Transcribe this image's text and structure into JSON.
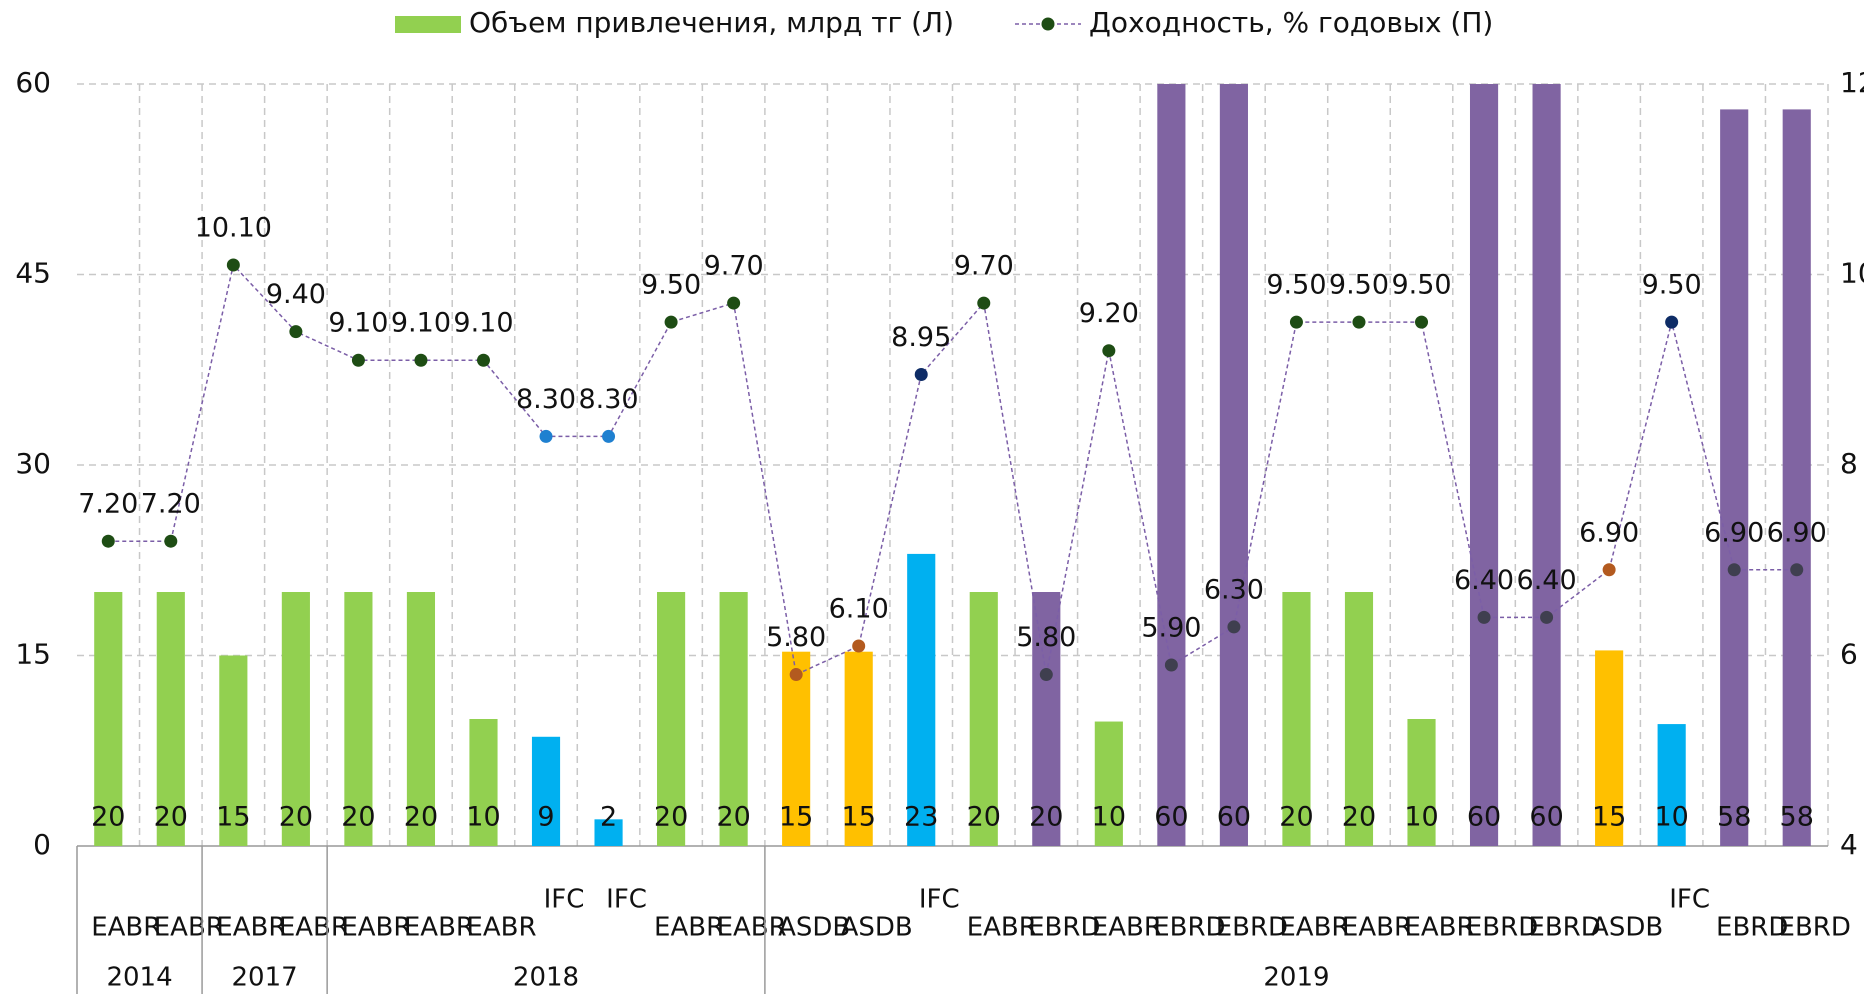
{
  "chart_data": {
    "type": "combo",
    "groups": [
      {
        "label": "2014",
        "span": 2
      },
      {
        "label": "2017",
        "span": 2
      },
      {
        "label": "2018",
        "span": 7
      },
      {
        "label": "2019",
        "span": 17
      }
    ],
    "categories": [
      "EABR",
      "EABR",
      "EABR",
      "EABR",
      "EABR",
      "EABR",
      "EABR",
      "IFC",
      "IFC",
      "EABR",
      "EABR",
      "ASDB",
      "ASDB",
      "IFC",
      "EABR",
      "EBRD",
      "EABR",
      "EBRD",
      "EBRD",
      "EABR",
      "EABR",
      "EABR",
      "EBRD",
      "EBRD",
      "ASDB",
      "IFC",
      "EBRD",
      "EBRD"
    ],
    "ylim": [
      0,
      60
    ],
    "yticks": [
      0,
      15,
      30,
      45,
      60
    ],
    "y2lim": [
      4,
      12
    ],
    "y2ticks": [
      4,
      6,
      8,
      10,
      12
    ],
    "grid": true,
    "series": [
      {
        "name": "Объем привлечения, млрд тг (Л)",
        "type": "bar",
        "color": "#92d050",
        "colors": [
          "#92d050",
          "#92d050",
          "#92d050",
          "#92d050",
          "#92d050",
          "#92d050",
          "#92d050",
          "#00b0f0",
          "#00b0f0",
          "#92d050",
          "#92d050",
          "#ffc000",
          "#ffc000",
          "#00b0f0",
          "#92d050",
          "#8064a2",
          "#92d050",
          "#8064a2",
          "#8064a2",
          "#92d050",
          "#92d050",
          "#92d050",
          "#8064a2",
          "#8064a2",
          "#ffc000",
          "#00b0f0",
          "#8064a2",
          "#8064a2"
        ],
        "values": [
          20,
          20,
          15,
          20,
          20,
          20,
          10,
          8.6,
          2.1,
          20,
          20,
          15.3,
          15.3,
          23,
          20,
          20,
          9.8,
          60,
          60,
          20,
          20,
          10,
          60,
          60,
          15.4,
          9.6,
          58,
          58
        ],
        "value_labels": [
          "20",
          "20",
          "15",
          "20",
          "20",
          "20",
          "10",
          "9",
          "2",
          "20",
          "20",
          "15",
          "15",
          "23",
          "20",
          "20",
          "10",
          "60",
          "60",
          "20",
          "20",
          "10",
          "60",
          "60",
          "15",
          "10",
          "58",
          "58"
        ]
      },
      {
        "name": "Доходность, % годовых (П)",
        "type": "line",
        "axis": "y2",
        "color": "#7b5ea7",
        "legend_marker": "#1e4d14",
        "point_colors": [
          "#1e4d14",
          "#1e4d14",
          "#1e4d14",
          "#1e4d14",
          "#1e4d14",
          "#1e4d14",
          "#1e4d14",
          "#1f80d0",
          "#1f80d0",
          "#1e4d14",
          "#1e4d14",
          "#b35a1f",
          "#b35a1f",
          "#0e2c66",
          "#1e4d14",
          "#3f3f4f",
          "#1e4d14",
          "#3f3f4f",
          "#3f3f4f",
          "#1e4d14",
          "#1e4d14",
          "#1e4d14",
          "#3f3f4f",
          "#3f3f4f",
          "#b35a1f",
          "#0e2c66",
          "#3f3f4f",
          "#3f3f4f"
        ],
        "values": [
          7.2,
          7.2,
          10.1,
          9.4,
          9.1,
          9.1,
          9.1,
          8.3,
          8.3,
          9.5,
          9.7,
          5.8,
          6.1,
          8.95,
          9.7,
          5.8,
          9.2,
          5.9,
          6.3,
          9.5,
          9.5,
          9.5,
          6.4,
          6.4,
          6.9,
          9.5,
          6.9,
          6.9
        ],
        "value_labels": [
          "7.20",
          "7.20",
          "10.10",
          "9.40",
          "9.10",
          "9.10",
          "9.10",
          "8.30",
          "8.30",
          "9.50",
          "9.70",
          "5.80",
          "6.10",
          "8.95",
          "9.70",
          "5.80",
          "9.20",
          "5.90",
          "6.30",
          "9.50",
          "9.50",
          "9.50",
          "6.40",
          "6.40",
          "6.90",
          "9.50",
          "6.90",
          "6.90"
        ]
      }
    ]
  }
}
